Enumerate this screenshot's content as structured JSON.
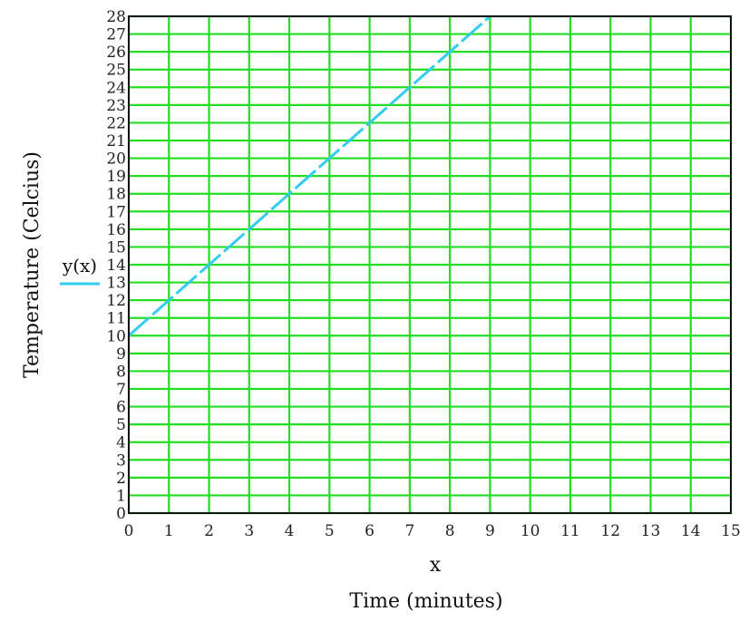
{
  "chart_data": {
    "type": "line",
    "xlabel_var": "x",
    "xlabel": "Time (minutes)",
    "ylabel": "Temperature (Celcius)",
    "xlim": [
      0,
      15
    ],
    "ylim": [
      0,
      28
    ],
    "x_ticks": [
      0,
      1,
      2,
      3,
      4,
      5,
      6,
      7,
      8,
      9,
      10,
      11,
      12,
      13,
      14,
      15
    ],
    "y_ticks": [
      0,
      1,
      2,
      3,
      4,
      5,
      6,
      7,
      8,
      9,
      10,
      11,
      12,
      13,
      14,
      15,
      16,
      17,
      18,
      19,
      20,
      21,
      22,
      23,
      24,
      25,
      26,
      27,
      28
    ],
    "grid": true,
    "legend_position": "left",
    "colors": {
      "grid": "#22dd22",
      "line": "#33ccee",
      "frame": "#111111"
    },
    "series": [
      {
        "name": "y(x)",
        "style": "dashed",
        "x": [
          0,
          9
        ],
        "y": [
          10,
          28
        ]
      }
    ]
  }
}
